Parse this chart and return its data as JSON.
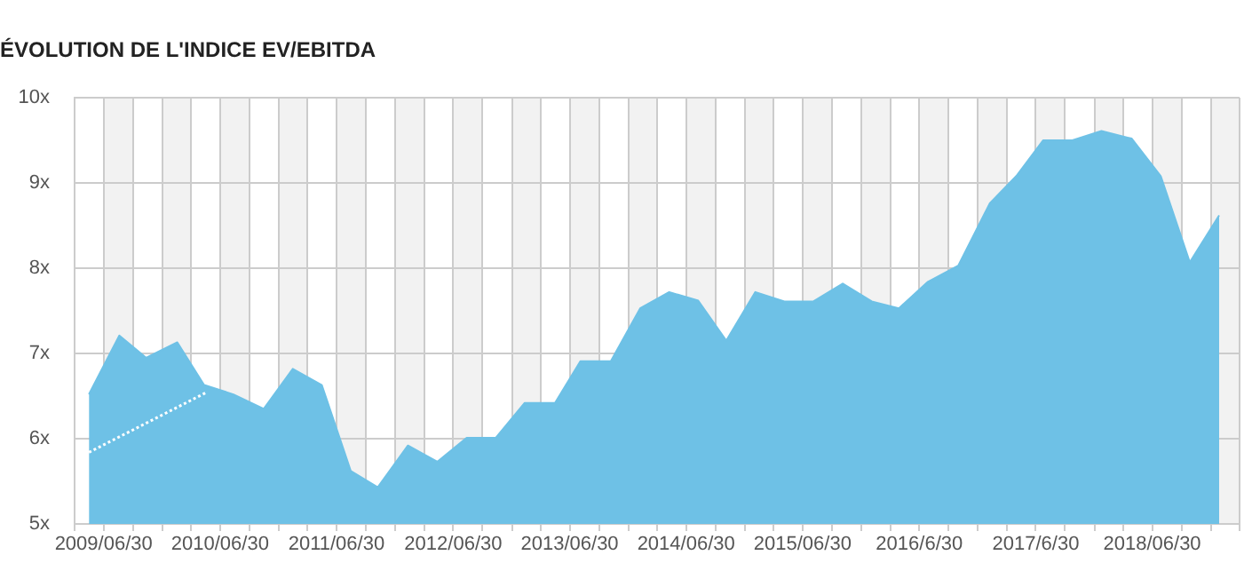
{
  "chart_data": {
    "type": "area",
    "title": "ÉVOLUTION DE L'INDICE EV/EBITDA",
    "xlim": [
      "2009-03-31",
      "2019-03-31"
    ],
    "xticks": [
      {
        "value": "2009-03-31",
        "label": null
      },
      {
        "value": "2009-06-30",
        "label": "2009/06/30"
      },
      {
        "value": "2009-09-30",
        "label": null
      },
      {
        "value": "2009-12-31",
        "label": null
      },
      {
        "value": "2010-03-31",
        "label": null
      },
      {
        "value": "2010-06-30",
        "label": "2010/06/30"
      },
      {
        "value": "2010-09-30",
        "label": null
      },
      {
        "value": "2010-12-31",
        "label": null
      },
      {
        "value": "2011-03-31",
        "label": null
      },
      {
        "value": "2011-06-30",
        "label": "2011/06/30"
      },
      {
        "value": "2011-09-30",
        "label": null
      },
      {
        "value": "2011-12-31",
        "label": null
      },
      {
        "value": "2012-03-31",
        "label": null
      },
      {
        "value": "2012-06-30",
        "label": "2012/06/30"
      },
      {
        "value": "2012-09-30",
        "label": null
      },
      {
        "value": "2012-12-31",
        "label": null
      },
      {
        "value": "2013-03-31",
        "label": null
      },
      {
        "value": "2013-06-30",
        "label": "2013/06/30"
      },
      {
        "value": "2013-09-30",
        "label": null
      },
      {
        "value": "2013-12-31",
        "label": null
      },
      {
        "value": "2014-03-31",
        "label": null
      },
      {
        "value": "2014-06-30",
        "label": "2014/06/30"
      },
      {
        "value": "2014-09-30",
        "label": null
      },
      {
        "value": "2014-12-31",
        "label": null
      },
      {
        "value": "2015-03-31",
        "label": null
      },
      {
        "value": "2015-06-30",
        "label": "2015/06/30"
      },
      {
        "value": "2015-09-30",
        "label": null
      },
      {
        "value": "2015-12-31",
        "label": null
      },
      {
        "value": "2016-03-31",
        "label": null
      },
      {
        "value": "2016-06-30",
        "label": "2016/6/30"
      },
      {
        "value": "2016-09-30",
        "label": null
      },
      {
        "value": "2016-12-31",
        "label": null
      },
      {
        "value": "2017-03-31",
        "label": null
      },
      {
        "value": "2017-06-30",
        "label": "2017/6/30"
      },
      {
        "value": "2017-09-30",
        "label": null
      },
      {
        "value": "2017-12-31",
        "label": null
      },
      {
        "value": "2018-03-31",
        "label": null
      },
      {
        "value": "2018-06-30",
        "label": "2018/06/30"
      },
      {
        "value": "2018-09-30",
        "label": null
      },
      {
        "value": "2018-12-31",
        "label": null
      },
      {
        "value": "2019-03-31",
        "label": null
      }
    ],
    "ylim": [
      5,
      10
    ],
    "yticks": [
      {
        "value": 5,
        "label": "5x"
      },
      {
        "value": 6,
        "label": "6x"
      },
      {
        "value": 7,
        "label": "7x"
      },
      {
        "value": 8,
        "label": "8x"
      },
      {
        "value": 9,
        "label": "9x"
      },
      {
        "value": 10,
        "label": "10x"
      }
    ],
    "grid": true,
    "marker": "none",
    "series": [
      {
        "color": "#6ec1e6",
        "x": [
          "2009-05-15",
          "2009-08-18",
          "2009-11-10",
          "2010-02-16",
          "2010-05-11",
          "2010-08-11",
          "2010-11-14",
          "2011-02-13",
          "2011-05-15",
          "2011-08-14",
          "2011-11-06",
          "2012-02-09",
          "2012-05-11",
          "2012-08-11",
          "2012-11-10",
          "2013-02-09",
          "2013-05-15",
          "2013-08-03",
          "2013-11-06",
          "2014-02-06",
          "2014-05-08",
          "2014-08-07",
          "2014-11-03",
          "2015-02-02",
          "2015-05-04",
          "2015-08-03",
          "2015-11-03",
          "2016-02-02",
          "2016-04-27",
          "2016-07-27",
          "2016-10-30",
          "2017-02-06",
          "2017-04-30",
          "2017-07-23",
          "2017-10-23",
          "2018-01-22",
          "2018-04-27",
          "2018-07-27",
          "2018-10-26",
          "2019-01-26"
        ],
        "values": [
          6.52,
          7.21,
          6.95,
          7.13,
          6.63,
          6.52,
          6.35,
          6.82,
          6.63,
          5.62,
          5.43,
          5.92,
          5.73,
          6.01,
          6.01,
          6.42,
          6.42,
          6.91,
          6.91,
          7.53,
          7.72,
          7.62,
          7.15,
          7.72,
          7.61,
          7.61,
          7.82,
          7.61,
          7.53,
          7.84,
          8.03,
          8.76,
          9.08,
          9.5,
          9.5,
          9.61,
          9.52,
          9.08,
          8.07,
          8.62
        ]
      },
      {
        "type": "line",
        "color": "#ffffff",
        "line_style": "dotted",
        "x": [
          "2009-05-15",
          "2010-05-22"
        ],
        "values": [
          5.84,
          6.55
        ]
      }
    ]
  }
}
